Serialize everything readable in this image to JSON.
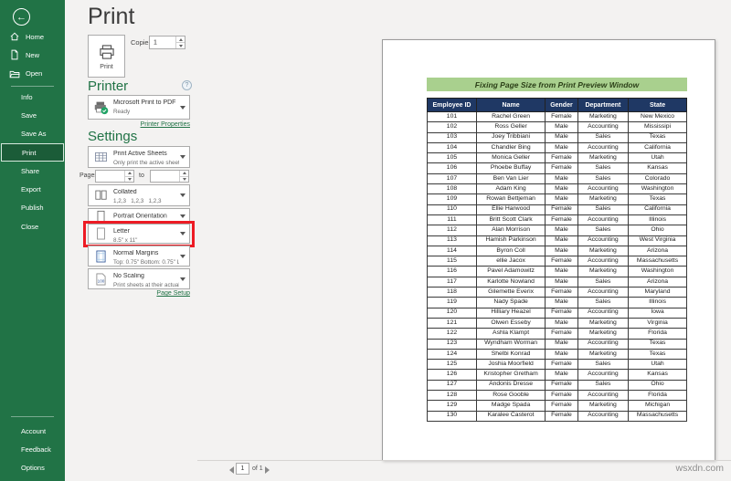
{
  "colors": {
    "sidebar_green": "#217346",
    "selected_item_green": "#1b5c38",
    "banner_green": "#a9d08e",
    "table_header_navy": "#1f3864",
    "highlight_red": "#ed1b24",
    "link_green": "#217346"
  },
  "sidebar": {
    "top_items": [
      {
        "label": "Home",
        "icon": "home-icon"
      },
      {
        "label": "New",
        "icon": "new-icon"
      },
      {
        "label": "Open",
        "icon": "open-icon"
      }
    ],
    "middle_items": [
      "Info",
      "Save",
      "Save As",
      "Print",
      "Share",
      "Export",
      "Publish",
      "Close"
    ],
    "selected_item": "Print",
    "bottom_items": [
      "Account",
      "Feedback",
      "Options"
    ]
  },
  "header": {
    "title": "Print"
  },
  "print_controls": {
    "print_button_label": "Print",
    "copies_label": "Copies:",
    "copies_value": "1"
  },
  "printer_section": {
    "title": "Printer",
    "printer_name": "Microsoft Print to PDF",
    "printer_status": "Ready",
    "properties_link": "Printer Properties"
  },
  "settings_section": {
    "title": "Settings",
    "sheets_title": "Print Active Sheets",
    "sheets_subtitle": "Only print the active sheets",
    "pages_label": "Pages:",
    "pages_from_value": "",
    "pages_to_label": "to",
    "pages_to_value": "",
    "collated_title": "Collated",
    "collated_subtitle": "1,2,3   1,2,3   1,2,3",
    "orientation_title": "Portrait Orientation",
    "paper_title": "Letter",
    "paper_subtitle": "8.5\" x 11\"",
    "margins_title": "Normal Margins",
    "margins_subtitle": "Top: 0.75\" Bottom: 0.75\" Lef...",
    "scaling_title": "No Scaling",
    "scaling_subtitle": "Print sheets at their actual size",
    "page_setup_link": "Page Setup"
  },
  "preview": {
    "banner_title": "Fixing Page Size from Print Preview Window",
    "table": {
      "headers": [
        "Employee ID",
        "Name",
        "Gender",
        "Department",
        "State"
      ],
      "rows": [
        [
          "101",
          "Rachel Green",
          "Female",
          "Marketing",
          "New Mexico"
        ],
        [
          "102",
          "Ross Geller",
          "Male",
          "Accounting",
          "Mississipi"
        ],
        [
          "103",
          "Joey Tribbiani",
          "Male",
          "Sales",
          "Texas"
        ],
        [
          "104",
          "Chandler Bing",
          "Male",
          "Accounting",
          "California"
        ],
        [
          "105",
          "Monica Geller",
          "Female",
          "Marketing",
          "Utah"
        ],
        [
          "106",
          "Phoebe Buffay",
          "Female",
          "Sales",
          "Kansas"
        ],
        [
          "107",
          "Ben Van Lier",
          "Male",
          "Sales",
          "Colorado"
        ],
        [
          "108",
          "Adam King",
          "Male",
          "Accounting",
          "Washington"
        ],
        [
          "109",
          "Rowan Bettjeman",
          "Male",
          "Marketing",
          "Texas"
        ],
        [
          "110",
          "Ellie Harwood",
          "Female",
          "Sales",
          "California"
        ],
        [
          "111",
          "Britt Scott Clark",
          "Female",
          "Accounting",
          "Illinois"
        ],
        [
          "112",
          "Alan Morrison",
          "Male",
          "Sales",
          "Ohio"
        ],
        [
          "113",
          "Hamish Parkinson",
          "Male",
          "Accounting",
          "West Virginia"
        ],
        [
          "114",
          "Byron Coll",
          "Male",
          "Marketing",
          "Arizona"
        ],
        [
          "115",
          "ellie Jacox",
          "Female",
          "Accounting",
          "Massachusetts"
        ],
        [
          "116",
          "Pavel Adamowitz",
          "Male",
          "Marketing",
          "Washington"
        ],
        [
          "117",
          "Karlotte Nowland",
          "Male",
          "Sales",
          "Arizona"
        ],
        [
          "118",
          "Gilemette Everix",
          "Female",
          "Accounting",
          "Maryland"
        ],
        [
          "119",
          "Nady Spade",
          "Male",
          "Sales",
          "Illinois"
        ],
        [
          "120",
          "Hilliary Heazel",
          "Female",
          "Accounting",
          "Iowa"
        ],
        [
          "121",
          "Olwen Esseby",
          "Male",
          "Marketing",
          "Virginia"
        ],
        [
          "122",
          "Ashla Klampt",
          "Female",
          "Marketing",
          "Florida"
        ],
        [
          "123",
          "Wyndham Worman",
          "Male",
          "Accounting",
          "Texas"
        ],
        [
          "124",
          "Shelbi Konrad",
          "Male",
          "Marketing",
          "Texas"
        ],
        [
          "125",
          "Joshia Moorfield",
          "Female",
          "Sales",
          "Utah"
        ],
        [
          "126",
          "Kristopher Gretham",
          "Male",
          "Accounting",
          "Kansas"
        ],
        [
          "127",
          "Andonis Dresse",
          "Female",
          "Sales",
          "Ohio"
        ],
        [
          "128",
          "Rose Gooble",
          "Female",
          "Accounting",
          "Florida"
        ],
        [
          "129",
          "Madge Spada",
          "Female",
          "Marketing",
          "Michigan"
        ],
        [
          "130",
          "Karalee Casterot",
          "Female",
          "Accounting",
          "Massachusetts"
        ]
      ]
    }
  },
  "pager": {
    "current_page": "1",
    "of_label": "of 1"
  },
  "watermark": "wsxdn.com"
}
